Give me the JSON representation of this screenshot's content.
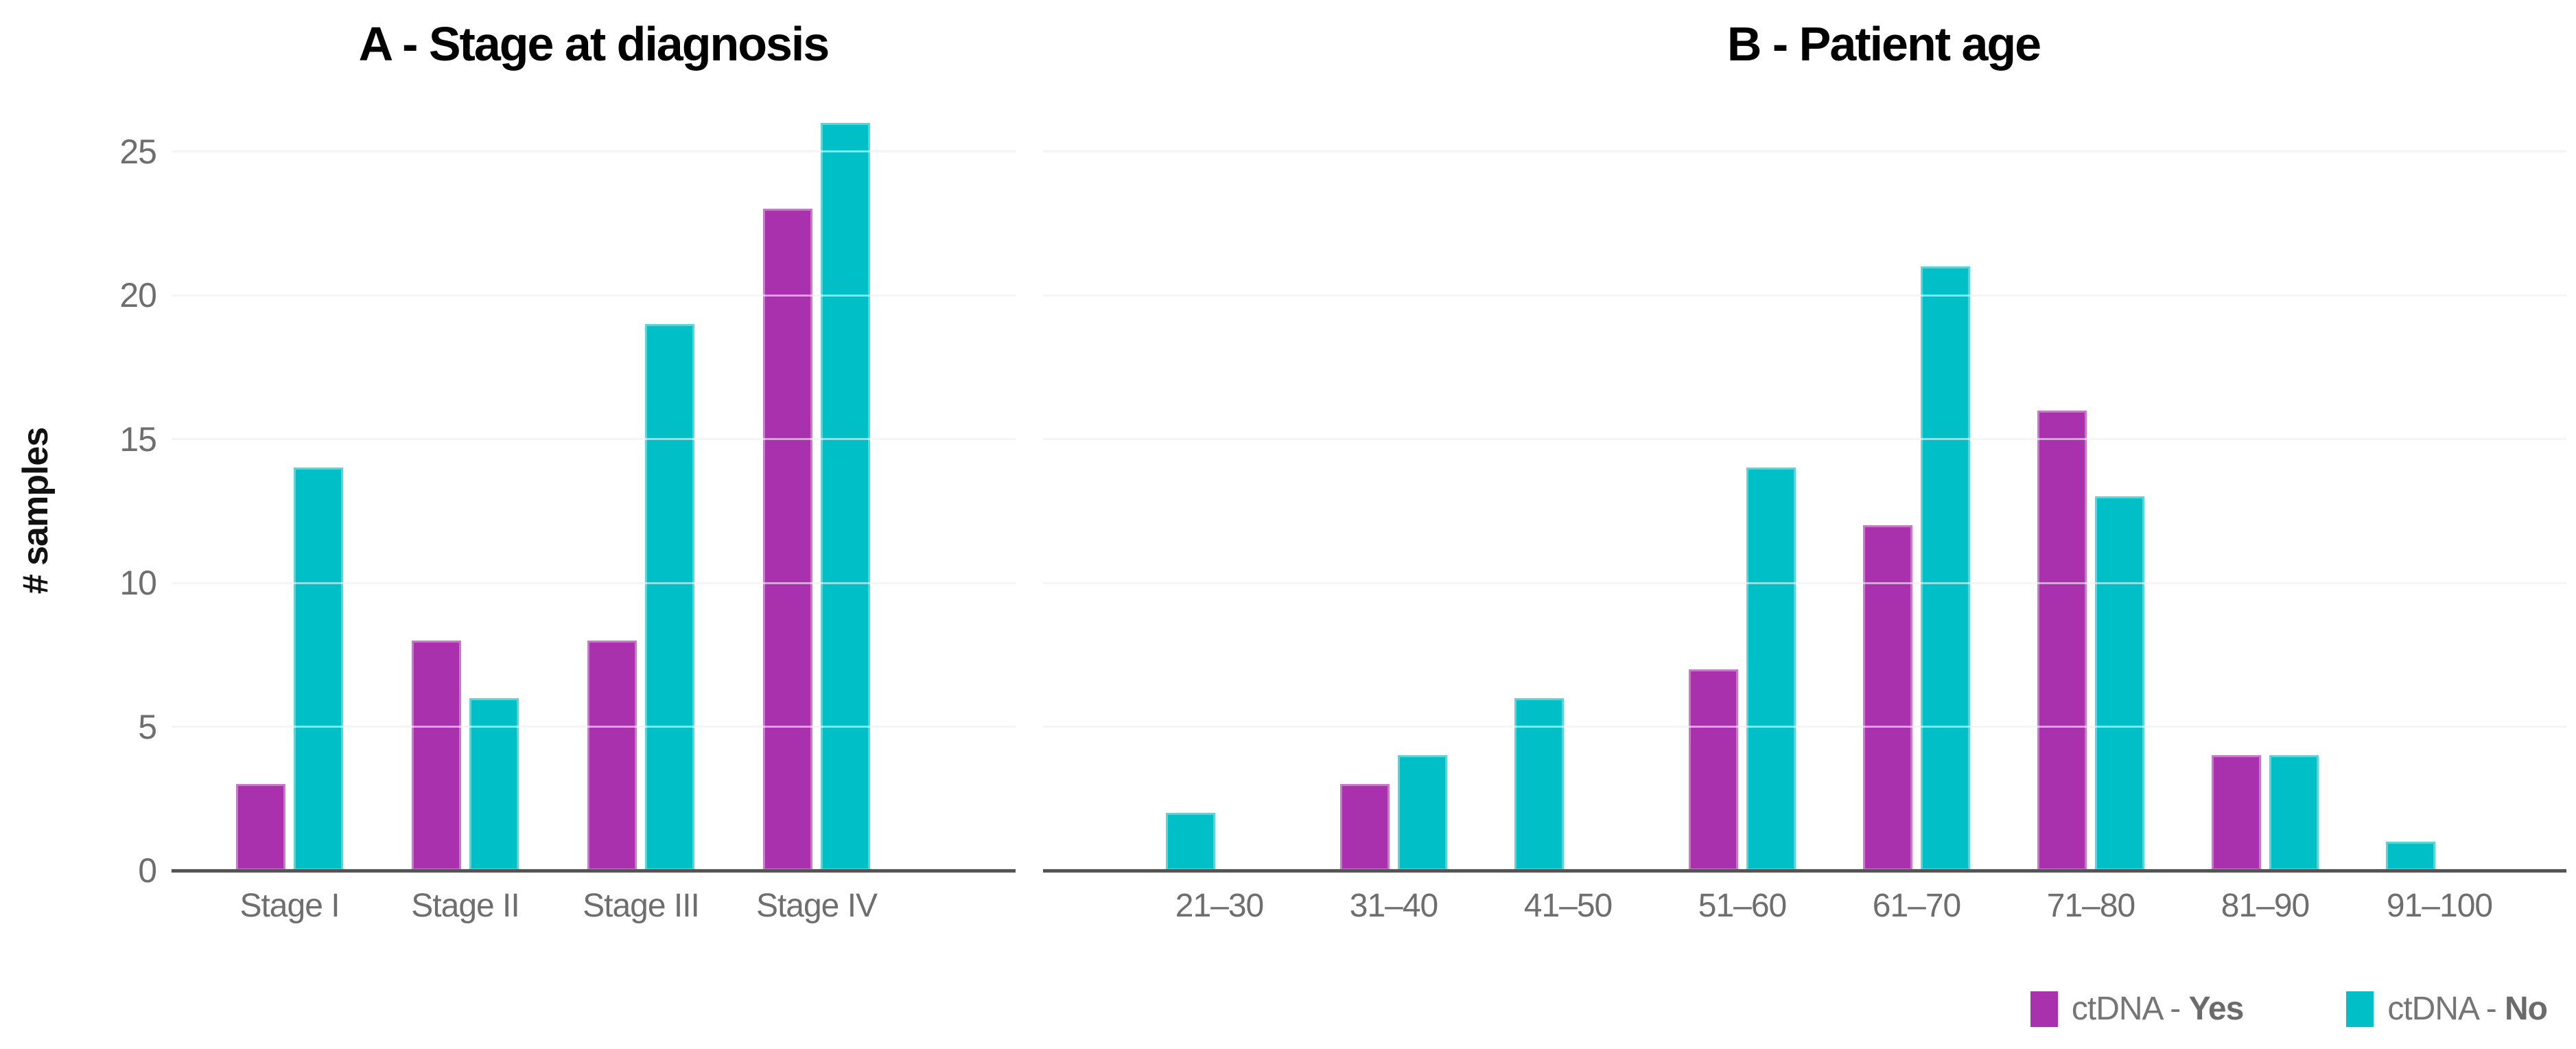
{
  "colors": {
    "ctdna_yes": "#A931AD",
    "ctdna_no": "#00BFC7",
    "gridline": "#E8E8E8",
    "axis_line": "#555555",
    "tick_text": "#6E6E6E",
    "legend_text": "#757575",
    "title_text": "#000000"
  },
  "y_axis": {
    "title": "# samples",
    "ticks": [
      0,
      5,
      10,
      15,
      20,
      25
    ]
  },
  "legend": {
    "items": [
      {
        "prefix": "ctDNA - ",
        "value": "Yes",
        "color_key": "ctdna_yes"
      },
      {
        "prefix": "ctDNA - ",
        "value": "No",
        "color_key": "ctdna_no"
      }
    ],
    "position": "bottom-right"
  },
  "chart_data": [
    {
      "type": "bar",
      "panel": "A",
      "title": "A - Stage at diagnosis",
      "categories": [
        "Stage I",
        "Stage II",
        "Stage III",
        "Stage IV"
      ],
      "series": [
        {
          "name": "ctDNA - Yes",
          "values": [
            3,
            8,
            8,
            23
          ]
        },
        {
          "name": "ctDNA - No",
          "values": [
            14,
            6,
            19,
            26
          ]
        }
      ],
      "xlabel": "",
      "ylabel": "# samples",
      "ylim": [
        0,
        26
      ],
      "yticks": [
        0,
        5,
        10,
        15,
        20,
        25
      ],
      "grid": true,
      "legend_position": "bottom-right"
    },
    {
      "type": "bar",
      "panel": "B",
      "title": "B - Patient age",
      "categories": [
        "21–30",
        "31–40",
        "41–50",
        "51–60",
        "61–70",
        "71–80",
        "81–90",
        "91–100"
      ],
      "series": [
        {
          "name": "ctDNA - Yes",
          "values": [
            0,
            3,
            0,
            7,
            12,
            16,
            4,
            0
          ]
        },
        {
          "name": "ctDNA - No",
          "values": [
            2,
            4,
            6,
            14,
            21,
            13,
            4,
            1
          ]
        }
      ],
      "xlabel": "",
      "ylabel": "# samples",
      "ylim": [
        0,
        26
      ],
      "yticks": [
        0,
        5,
        10,
        15,
        20,
        25
      ],
      "grid": true,
      "legend_position": "bottom-right"
    }
  ]
}
